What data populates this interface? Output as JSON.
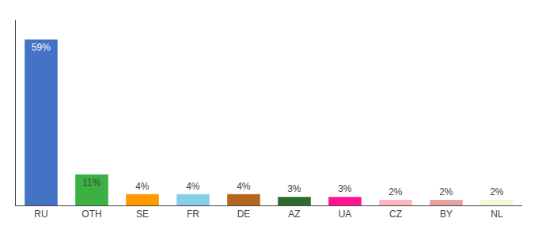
{
  "chart_data": {
    "type": "bar",
    "categories": [
      "RU",
      "OTH",
      "SE",
      "FR",
      "DE",
      "AZ",
      "UA",
      "CZ",
      "BY",
      "NL"
    ],
    "values": [
      59,
      11,
      4,
      4,
      4,
      3,
      3,
      2,
      2,
      2
    ],
    "value_labels": [
      "59%",
      "11%",
      "4%",
      "4%",
      "4%",
      "3%",
      "3%",
      "2%",
      "2%",
      "2%"
    ],
    "colors": [
      "#4472C4",
      "#3CB043",
      "#FF9900",
      "#87CEEB",
      "#B5651D",
      "#2E6B2E",
      "#FF1493",
      "#FFB6C1",
      "#E8A0A0",
      "#F5F5DC"
    ],
    "ylim": [
      0,
      66
    ],
    "grid": false,
    "data_labels": true,
    "tick_labels": "x"
  }
}
